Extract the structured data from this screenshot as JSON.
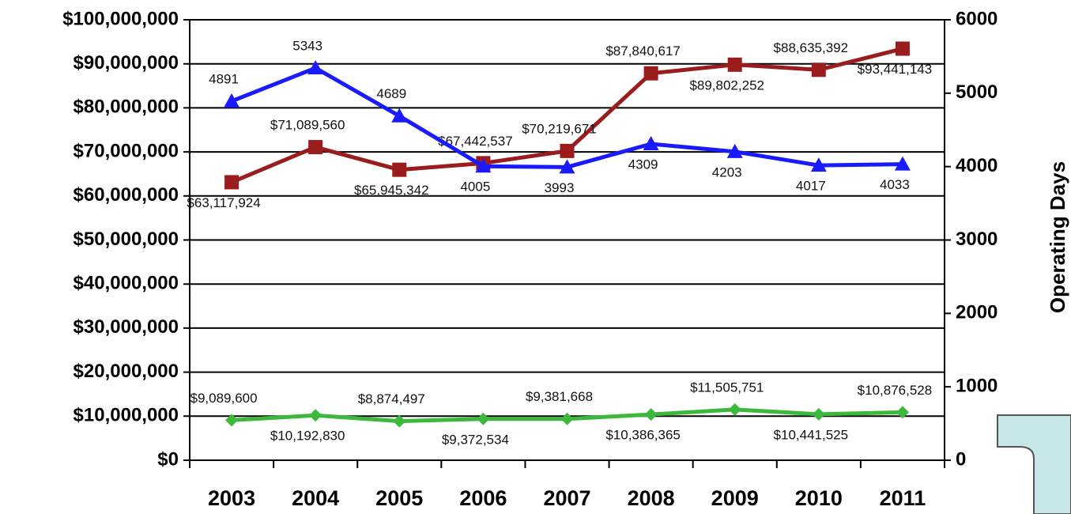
{
  "chart_data": {
    "type": "line",
    "y2_label": "Operating Days",
    "categories": [
      "2003",
      "2004",
      "2005",
      "2006",
      "2007",
      "2008",
      "2009",
      "2010",
      "2011"
    ],
    "series": [
      {
        "color": "#9b1c1c",
        "marker": "square",
        "values": [
          63117924,
          71089560,
          65945342,
          67442537,
          70219671,
          87840617,
          89802252,
          88635392,
          93441143
        ],
        "value_labels": [
          "$63,117,924",
          "$71,089,560",
          "$65,945,342",
          "$67,442,537",
          "$70,219,671",
          "$87,840,617",
          "$89,802,252",
          "$88,635,392",
          "$93,441,143"
        ]
      },
      {
        "color": "#3cb83c",
        "marker": "diamond",
        "values": [
          9089600,
          10192830,
          8874497,
          9372534,
          9381668,
          10386365,
          11505751,
          10441525,
          10876528
        ],
        "value_labels": [
          "$9,089,600",
          "$10,192,830",
          "$8,874,497",
          "$9,372,534",
          "$9,381,668",
          "$10,386,365",
          "$11,505,751",
          "$10,441,525",
          "$10,876,528"
        ]
      },
      {
        "color": "#1a1aff",
        "marker": "triangle",
        "axis": "y2",
        "values": [
          4891,
          5343,
          4689,
          4005,
          3993,
          4309,
          4203,
          4017,
          4033
        ]
      }
    ],
    "ylim": [
      0,
      100000000
    ],
    "yticks": [
      {
        "value": 0,
        "label": "$0"
      },
      {
        "value": 10000000,
        "label": "$10,000,000"
      },
      {
        "value": 20000000,
        "label": "$20,000,000"
      },
      {
        "value": 30000000,
        "label": "$30,000,000"
      },
      {
        "value": 40000000,
        "label": "$40,000,000"
      },
      {
        "value": 50000000,
        "label": "$50,000,000"
      },
      {
        "value": 60000000,
        "label": "$60,000,000"
      },
      {
        "value": 70000000,
        "label": "$70,000,000"
      },
      {
        "value": 80000000,
        "label": "$80,000,000"
      },
      {
        "value": 90000000,
        "label": "$90,000,000"
      },
      {
        "value": 100000000,
        "label": "$100,000,000"
      }
    ],
    "y2lim": [
      0,
      6000
    ],
    "y2ticks": [
      0,
      1000,
      2000,
      3000,
      4000,
      5000,
      6000
    ],
    "grid": true
  }
}
